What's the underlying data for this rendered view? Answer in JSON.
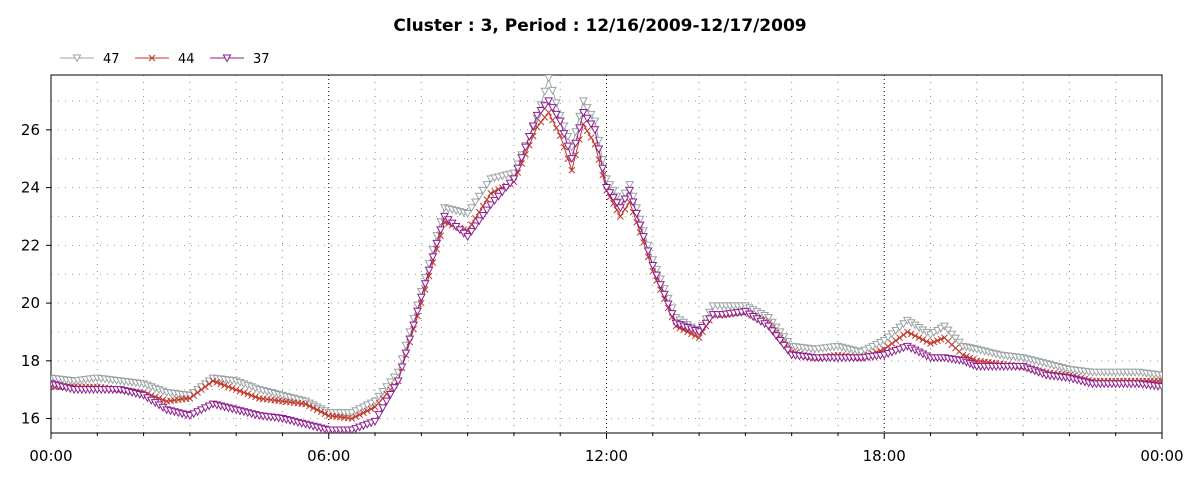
{
  "chart_data": {
    "type": "line",
    "title": "Cluster : 3, Period : 12/16/2009-12/17/2009",
    "xlabel": "",
    "ylabel": "",
    "xlim": [
      0,
      24
    ],
    "ylim": [
      15.5,
      27.9
    ],
    "x_ticks": [
      {
        "x": 0,
        "label": "00:00"
      },
      {
        "x": 6,
        "label": "06:00"
      },
      {
        "x": 12,
        "label": "12:00"
      },
      {
        "x": 18,
        "label": "18:00"
      },
      {
        "x": 24,
        "label": "00:00"
      }
    ],
    "y_ticks": [
      16,
      18,
      20,
      22,
      24,
      26
    ],
    "grid": "dotted",
    "legend_position": "top-left",
    "series": [
      {
        "name": "47",
        "color": "#9aa3a6",
        "marker": "triangle-down",
        "points": [
          [
            0,
            17.4
          ],
          [
            0.5,
            17.3
          ],
          [
            1.0,
            17.4
          ],
          [
            1.5,
            17.3
          ],
          [
            2.0,
            17.2
          ],
          [
            2.5,
            16.9
          ],
          [
            3.0,
            16.8
          ],
          [
            3.5,
            17.4
          ],
          [
            4.0,
            17.3
          ],
          [
            4.5,
            17.0
          ],
          [
            5.0,
            16.8
          ],
          [
            5.5,
            16.6
          ],
          [
            6.0,
            16.2
          ],
          [
            6.5,
            16.2
          ],
          [
            7.0,
            16.6
          ],
          [
            7.5,
            17.6
          ],
          [
            8.0,
            20.4
          ],
          [
            8.5,
            23.3
          ],
          [
            9.0,
            23.1
          ],
          [
            9.5,
            24.3
          ],
          [
            10.0,
            24.5
          ],
          [
            10.5,
            26.4
          ],
          [
            10.75,
            27.8
          ],
          [
            11.0,
            26.5
          ],
          [
            11.25,
            25.4
          ],
          [
            11.5,
            27.0
          ],
          [
            11.75,
            26.3
          ],
          [
            12.0,
            24.3
          ],
          [
            12.3,
            23.5
          ],
          [
            12.5,
            24.1
          ],
          [
            12.8,
            22.5
          ],
          [
            13.0,
            21.5
          ],
          [
            13.5,
            19.5
          ],
          [
            14.0,
            19.0
          ],
          [
            14.3,
            19.9
          ],
          [
            14.5,
            19.9
          ],
          [
            15.0,
            19.9
          ],
          [
            15.5,
            19.5
          ],
          [
            16.0,
            18.5
          ],
          [
            16.5,
            18.4
          ],
          [
            17.0,
            18.5
          ],
          [
            17.5,
            18.3
          ],
          [
            18.0,
            18.7
          ],
          [
            18.5,
            19.4
          ],
          [
            19.0,
            18.9
          ],
          [
            19.3,
            19.2
          ],
          [
            19.7,
            18.5
          ],
          [
            20.0,
            18.4
          ],
          [
            20.5,
            18.2
          ],
          [
            21.0,
            18.1
          ],
          [
            21.5,
            17.9
          ],
          [
            22.0,
            17.7
          ],
          [
            22.5,
            17.6
          ],
          [
            23.0,
            17.6
          ],
          [
            23.5,
            17.6
          ],
          [
            24.0,
            17.5
          ]
        ]
      },
      {
        "name": "44",
        "color": "#c0392b",
        "marker": "x",
        "points": [
          [
            0,
            17.1
          ],
          [
            0.5,
            17.1
          ],
          [
            1.0,
            17.1
          ],
          [
            1.5,
            17.0
          ],
          [
            2.0,
            16.9
          ],
          [
            2.5,
            16.6
          ],
          [
            3.0,
            16.7
          ],
          [
            3.5,
            17.3
          ],
          [
            4.0,
            17.0
          ],
          [
            4.5,
            16.7
          ],
          [
            5.0,
            16.6
          ],
          [
            5.5,
            16.5
          ],
          [
            6.0,
            16.1
          ],
          [
            6.5,
            16.0
          ],
          [
            7.0,
            16.4
          ],
          [
            7.5,
            17.3
          ],
          [
            8.0,
            20.0
          ],
          [
            8.5,
            22.8
          ],
          [
            9.0,
            22.5
          ],
          [
            9.5,
            23.8
          ],
          [
            10.0,
            24.2
          ],
          [
            10.5,
            26.1
          ],
          [
            10.75,
            26.6
          ],
          [
            11.0,
            25.8
          ],
          [
            11.25,
            24.6
          ],
          [
            11.5,
            26.2
          ],
          [
            11.75,
            25.5
          ],
          [
            12.0,
            23.9
          ],
          [
            12.3,
            23.0
          ],
          [
            12.5,
            23.5
          ],
          [
            12.8,
            22.1
          ],
          [
            13.0,
            21.1
          ],
          [
            13.5,
            19.2
          ],
          [
            14.0,
            18.8
          ],
          [
            14.3,
            19.6
          ],
          [
            14.5,
            19.6
          ],
          [
            15.0,
            19.7
          ],
          [
            15.5,
            19.3
          ],
          [
            16.0,
            18.3
          ],
          [
            16.5,
            18.1
          ],
          [
            17.0,
            18.2
          ],
          [
            17.5,
            18.1
          ],
          [
            18.0,
            18.4
          ],
          [
            18.5,
            19.0
          ],
          [
            19.0,
            18.6
          ],
          [
            19.3,
            18.8
          ],
          [
            19.7,
            18.2
          ],
          [
            20.0,
            18.0
          ],
          [
            20.5,
            17.9
          ],
          [
            21.0,
            17.8
          ],
          [
            21.5,
            17.6
          ],
          [
            22.0,
            17.5
          ],
          [
            22.5,
            17.3
          ],
          [
            23.0,
            17.3
          ],
          [
            23.5,
            17.3
          ],
          [
            24.0,
            17.3
          ]
        ]
      },
      {
        "name": "37",
        "color": "#8e1e8e",
        "marker": "triangle-down",
        "points": [
          [
            0,
            17.2
          ],
          [
            0.5,
            17.0
          ],
          [
            1.0,
            17.0
          ],
          [
            1.5,
            17.0
          ],
          [
            2.0,
            16.8
          ],
          [
            2.5,
            16.3
          ],
          [
            3.0,
            16.1
          ],
          [
            3.5,
            16.5
          ],
          [
            4.0,
            16.3
          ],
          [
            4.5,
            16.1
          ],
          [
            5.0,
            16.0
          ],
          [
            5.5,
            15.8
          ],
          [
            6.0,
            15.6
          ],
          [
            6.5,
            15.6
          ],
          [
            7.0,
            15.9
          ],
          [
            7.5,
            17.3
          ],
          [
            8.0,
            20.2
          ],
          [
            8.5,
            23.0
          ],
          [
            9.0,
            22.3
          ],
          [
            9.5,
            23.4
          ],
          [
            10.0,
            24.3
          ],
          [
            10.5,
            26.5
          ],
          [
            10.75,
            27.0
          ],
          [
            11.0,
            26.3
          ],
          [
            11.25,
            25.0
          ],
          [
            11.5,
            26.6
          ],
          [
            11.75,
            26.0
          ],
          [
            12.0,
            24.0
          ],
          [
            12.3,
            23.3
          ],
          [
            12.5,
            23.9
          ],
          [
            12.8,
            22.3
          ],
          [
            13.0,
            21.3
          ],
          [
            13.5,
            19.3
          ],
          [
            14.0,
            19.0
          ],
          [
            14.3,
            19.6
          ],
          [
            14.5,
            19.6
          ],
          [
            15.0,
            19.7
          ],
          [
            15.5,
            19.2
          ],
          [
            16.0,
            18.2
          ],
          [
            16.5,
            18.1
          ],
          [
            17.0,
            18.1
          ],
          [
            17.5,
            18.1
          ],
          [
            18.0,
            18.2
          ],
          [
            18.5,
            18.5
          ],
          [
            19.0,
            18.1
          ],
          [
            19.3,
            18.1
          ],
          [
            19.7,
            18.0
          ],
          [
            20.0,
            17.8
          ],
          [
            20.5,
            17.8
          ],
          [
            21.0,
            17.8
          ],
          [
            21.5,
            17.5
          ],
          [
            22.0,
            17.4
          ],
          [
            22.5,
            17.2
          ],
          [
            23.0,
            17.2
          ],
          [
            23.5,
            17.2
          ],
          [
            24.0,
            17.1
          ]
        ]
      }
    ]
  }
}
